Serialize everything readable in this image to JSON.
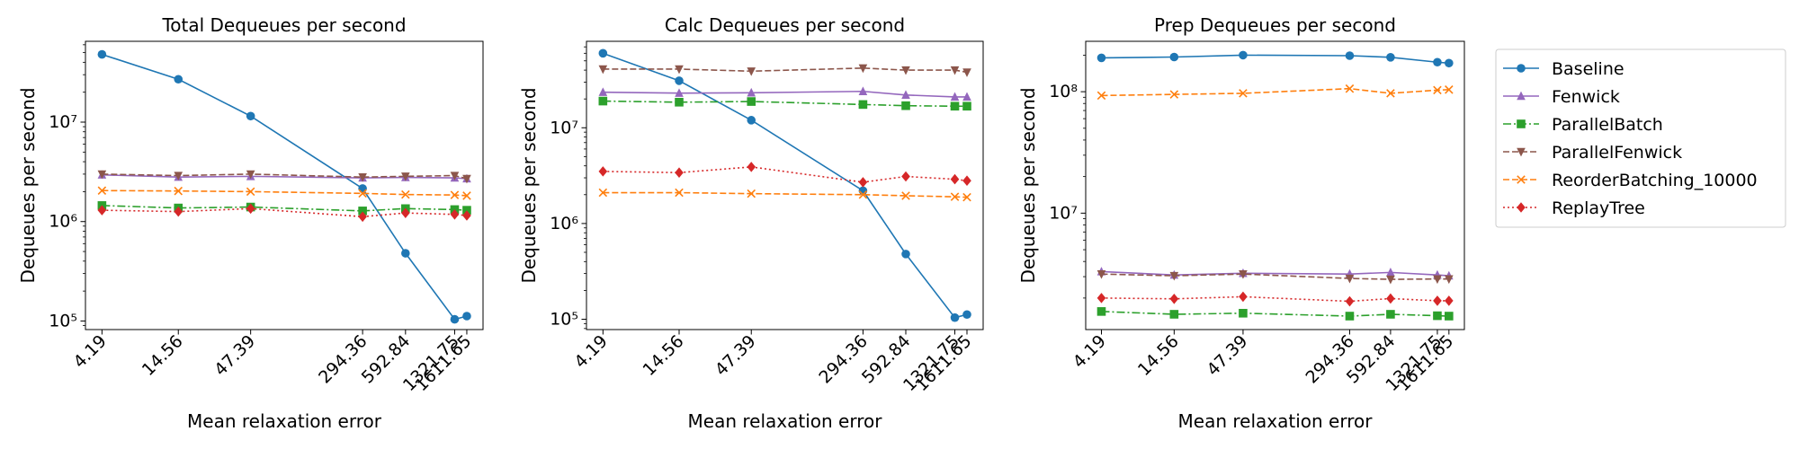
{
  "chart_data": {
    "series_styles": [
      {
        "name": "Baseline",
        "color": "#1f77b4",
        "marker": "circle",
        "dash": "solid"
      },
      {
        "name": "Fenwick",
        "color": "#9467bd",
        "marker": "triangle-up",
        "dash": "solid"
      },
      {
        "name": "ParallelBatch",
        "color": "#2ca02c",
        "marker": "square",
        "dash": "dashdot"
      },
      {
        "name": "ParallelFenwick",
        "color": "#8c564b",
        "marker": "triangle-down",
        "dash": "dashed"
      },
      {
        "name": "ReorderBatching_10000",
        "color": "#ff7f0e",
        "marker": "x",
        "dash": "dashed"
      },
      {
        "name": "ReplayTree",
        "color": "#d62728",
        "marker": "diamond",
        "dash": "dotted"
      }
    ],
    "legend_position": "right",
    "panels": [
      {
        "type": "line",
        "title": "Total Dequeues per second",
        "xlabel": "Mean relaxation error",
        "ylabel": "Dequeues per second",
        "x_scale": "log",
        "y_scale": "log",
        "xlim": [
          3.2,
          2100
        ],
        "ylim": [
          82000,
          65000000
        ],
        "x": [
          4.19,
          14.56,
          47.39,
          294.36,
          592.84,
          1321.75,
          1611.65
        ],
        "x_tick_labels": [
          "4.19",
          "14.56",
          "47.39",
          "294.36",
          "592.84",
          "1321.75",
          "1611.65"
        ],
        "y_ticks": [
          {
            "value": 100000,
            "label": "10⁵"
          },
          {
            "value": 1000000,
            "label": "10⁶"
          },
          {
            "value": 10000000,
            "label": "10⁷"
          }
        ],
        "series": [
          {
            "name": "Baseline",
            "values": [
              48000000,
              27000000,
              11500000,
              2150000,
              480000,
              104000,
              112000
            ]
          },
          {
            "name": "Fenwick",
            "values": [
              2950000,
              2800000,
              2850000,
              2750000,
              2780000,
              2750000,
              2700000
            ]
          },
          {
            "name": "ParallelBatch",
            "values": [
              1450000,
              1370000,
              1400000,
              1280000,
              1350000,
              1320000,
              1300000
            ]
          },
          {
            "name": "ParallelFenwick",
            "values": [
              3000000,
              2900000,
              3000000,
              2800000,
              2850000,
              2900000,
              2700000
            ]
          },
          {
            "name": "ReorderBatching_10000",
            "values": [
              2050000,
              2030000,
              2000000,
              1920000,
              1870000,
              1850000,
              1820000
            ]
          },
          {
            "name": "ReplayTree",
            "values": [
              1300000,
              1260000,
              1350000,
              1120000,
              1220000,
              1180000,
              1150000
            ]
          }
        ]
      },
      {
        "type": "line",
        "title": "Calc Dequeues per second",
        "xlabel": "Mean relaxation error",
        "ylabel": "Dequeues per second",
        "x_scale": "log",
        "y_scale": "log",
        "xlim": [
          3.2,
          2100
        ],
        "ylim": [
          78000,
          80000000
        ],
        "x": [
          4.19,
          14.56,
          47.39,
          294.36,
          592.84,
          1321.75,
          1611.65
        ],
        "x_tick_labels": [
          "4.19",
          "14.56",
          "47.39",
          "294.36",
          "592.84",
          "1321.75",
          "1611.65"
        ],
        "y_ticks": [
          {
            "value": 100000,
            "label": "10⁵"
          },
          {
            "value": 1000000,
            "label": "10⁶"
          },
          {
            "value": 10000000,
            "label": "10⁷"
          }
        ],
        "series": [
          {
            "name": "Baseline",
            "values": [
              60000000,
              31000000,
              12000000,
              2200000,
              480000,
              104000,
              112000
            ]
          },
          {
            "name": "Fenwick",
            "values": [
              23500000,
              23000000,
              23200000,
              24000000,
              22000000,
              21000000,
              21000000
            ]
          },
          {
            "name": "ParallelBatch",
            "values": [
              19000000,
              18500000,
              18800000,
              17500000,
              17000000,
              16800000,
              16800000
            ]
          },
          {
            "name": "ParallelFenwick",
            "values": [
              41000000,
              41000000,
              39000000,
              42000000,
              40000000,
              40000000,
              38000000
            ]
          },
          {
            "name": "ReorderBatching_10000",
            "values": [
              2100000,
              2100000,
              2050000,
              2000000,
              1950000,
              1900000,
              1880000
            ]
          },
          {
            "name": "ReplayTree",
            "values": [
              3500000,
              3400000,
              3900000,
              2700000,
              3100000,
              2900000,
              2800000
            ]
          }
        ]
      },
      {
        "type": "line",
        "title": "Prep Dequeues per second",
        "xlabel": "Mean relaxation error",
        "ylabel": "Dequeues per second",
        "x_scale": "log",
        "y_scale": "log",
        "xlim": [
          3.2,
          2100
        ],
        "ylim": [
          1100000,
          260000000
        ],
        "x": [
          4.19,
          14.56,
          47.39,
          294.36,
          592.84,
          1321.75,
          1611.65
        ],
        "x_tick_labels": [
          "4.19",
          "14.56",
          "47.39",
          "294.36",
          "592.84",
          "1321.75",
          "1611.65"
        ],
        "y_ticks": [
          {
            "value": 10000000,
            "label": "10⁷"
          },
          {
            "value": 100000000,
            "label": "10⁸"
          }
        ],
        "series": [
          {
            "name": "Baseline",
            "values": [
              190000000,
              193000000,
              200000000,
              198000000,
              192000000,
              175000000,
              172000000
            ]
          },
          {
            "name": "Fenwick",
            "values": [
              3300000,
              3100000,
              3200000,
              3150000,
              3250000,
              3100000,
              3050000
            ]
          },
          {
            "name": "ParallelBatch",
            "values": [
              1550000,
              1470000,
              1500000,
              1420000,
              1470000,
              1430000,
              1420000
            ]
          },
          {
            "name": "ParallelFenwick",
            "values": [
              3150000,
              3050000,
              3150000,
              2900000,
              2850000,
              2870000,
              2870000
            ]
          },
          {
            "name": "ReorderBatching_10000",
            "values": [
              93000000,
              95000000,
              97000000,
              106000000,
              97000000,
              103000000,
              104000000
            ]
          },
          {
            "name": "ReplayTree",
            "values": [
              2000000,
              1970000,
              2050000,
              1880000,
              1980000,
              1900000,
              1900000
            ]
          }
        ]
      }
    ]
  }
}
